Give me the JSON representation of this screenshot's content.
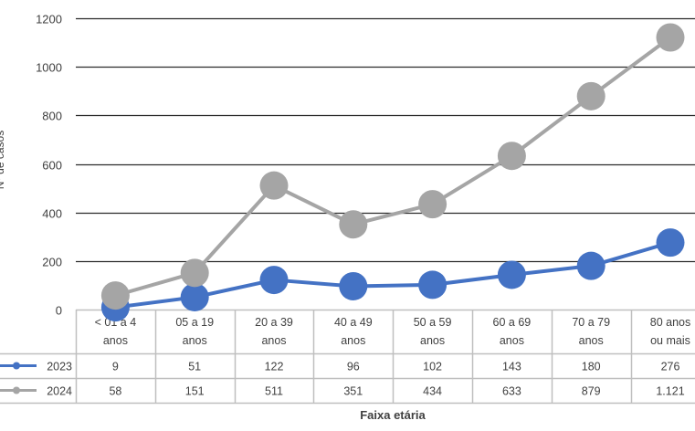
{
  "chart_data": {
    "type": "line",
    "title": "",
    "xlabel": "Faixa etária",
    "ylabel": "Nº de casos",
    "ylim": [
      0,
      1200
    ],
    "yticks": [
      0,
      200,
      400,
      600,
      800,
      1000,
      1200
    ],
    "grid": true,
    "legend_position": "data-table-left",
    "categories": [
      "< 01 a 4 anos",
      "05 a 19 anos",
      "20 a 39 anos",
      "40 a 49 anos",
      "50 a 59 anos",
      "60 a 69 anos",
      "70 a 79 anos",
      "80 anos ou mais"
    ],
    "category_lines": [
      [
        "< 01 a 4",
        "anos"
      ],
      [
        "05 a 19",
        "anos"
      ],
      [
        "20 a 39",
        "anos"
      ],
      [
        "40 a 49",
        "anos"
      ],
      [
        "50 a 59",
        "anos"
      ],
      [
        "60 a 69",
        "anos"
      ],
      [
        "70 a 79",
        "anos"
      ],
      [
        "80 anos",
        "ou mais"
      ]
    ],
    "series": [
      {
        "name": "2023",
        "color": "#4472C4",
        "values": [
          9,
          51,
          122,
          96,
          102,
          143,
          180,
          276
        ],
        "labels": [
          "9",
          "51",
          "122",
          "96",
          "102",
          "143",
          "180",
          "276"
        ]
      },
      {
        "name": "2024",
        "color": "#A5A5A5",
        "values": [
          58,
          151,
          511,
          351,
          434,
          633,
          879,
          1121
        ],
        "labels": [
          "58",
          "151",
          "511",
          "351",
          "434",
          "633",
          "879",
          "1.121"
        ]
      }
    ]
  },
  "colors": {
    "gridline": "#2b2b2b",
    "table_border": "#bfbfbf",
    "text": "#404040"
  }
}
